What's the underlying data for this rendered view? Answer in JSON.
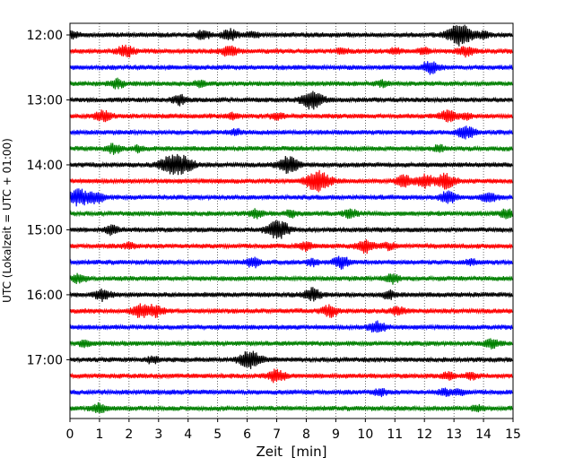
{
  "chart_data": {
    "type": "line",
    "subtype": "helicorder",
    "title": "",
    "xlabel": "Zeit  [min]",
    "ylabel": "UTC (Lokalzeit = UTC + 01:00)",
    "xlim": [
      0,
      15
    ],
    "x_ticks": [
      "0",
      "1",
      "2",
      "3",
      "4",
      "5",
      "6",
      "7",
      "8",
      "9",
      "10",
      "11",
      "12",
      "13",
      "14",
      "15"
    ],
    "y_ticks": [
      "12:00",
      "13:00",
      "14:00",
      "15:00",
      "16:00",
      "17:00"
    ],
    "minutes_per_line": 15,
    "start_time": "12:00",
    "line_count": 24,
    "grid": "vertical dotted lines at each minute",
    "colors": [
      "#000000",
      "#ff0000",
      "#0000ff",
      "#008000"
    ],
    "color_cycle": "black, red, blue, green (repeats every 4 lines)",
    "bursts": [
      [
        [
          0.1,
          0.6
        ],
        [
          4.5,
          0.9
        ],
        [
          5.4,
          1.2
        ],
        [
          6.2,
          0.6
        ],
        [
          13.2,
          2.4
        ],
        [
          14.0,
          0.7
        ]
      ],
      [
        [
          1.9,
          1.3
        ],
        [
          5.4,
          1.2
        ],
        [
          9.2,
          0.6
        ],
        [
          11.0,
          0.6
        ],
        [
          12.0,
          0.6
        ],
        [
          13.4,
          1.0
        ]
      ],
      [
        [
          12.2,
          1.3
        ]
      ],
      [
        [
          1.6,
          0.9
        ],
        [
          4.4,
          0.6
        ],
        [
          10.6,
          0.6
        ]
      ],
      [
        [
          3.7,
          1.0
        ],
        [
          8.2,
          2.0
        ]
      ],
      [
        [
          1.1,
          1.2
        ],
        [
          5.5,
          0.6
        ],
        [
          7.0,
          0.7
        ],
        [
          12.8,
          1.2
        ],
        [
          13.4,
          0.6
        ]
      ],
      [
        [
          5.6,
          0.6
        ],
        [
          13.4,
          1.3
        ]
      ],
      [
        [
          1.5,
          1.0
        ],
        [
          2.3,
          0.6
        ],
        [
          12.5,
          0.6
        ]
      ],
      [
        [
          3.3,
          1.6
        ],
        [
          3.8,
          2.0
        ],
        [
          7.4,
          1.8
        ]
      ],
      [
        [
          8.4,
          2.3
        ],
        [
          11.3,
          1.2
        ],
        [
          12.0,
          1.3
        ],
        [
          12.7,
          1.6
        ]
      ],
      [
        [
          0.3,
          1.8
        ],
        [
          0.9,
          1.2
        ],
        [
          12.8,
          1.3
        ],
        [
          14.2,
          1.0
        ]
      ],
      [
        [
          6.3,
          0.8
        ],
        [
          7.5,
          0.7
        ],
        [
          9.5,
          0.9
        ],
        [
          14.8,
          1.0
        ]
      ],
      [
        [
          1.4,
          0.9
        ],
        [
          6.9,
          1.4
        ],
        [
          7.2,
          1.2
        ]
      ],
      [
        [
          2.0,
          0.6
        ],
        [
          8.0,
          0.9
        ],
        [
          10.0,
          1.4
        ],
        [
          10.8,
          0.7
        ]
      ],
      [
        [
          6.2,
          1.0
        ],
        [
          8.2,
          0.7
        ],
        [
          9.2,
          1.3
        ],
        [
          13.6,
          0.5
        ]
      ],
      [
        [
          0.3,
          0.9
        ],
        [
          10.9,
          1.0
        ]
      ],
      [
        [
          1.1,
          1.2
        ],
        [
          8.2,
          1.3
        ],
        [
          10.8,
          0.8
        ]
      ],
      [
        [
          2.4,
          1.4
        ],
        [
          2.9,
          1.2
        ],
        [
          8.8,
          1.2
        ],
        [
          11.1,
          0.9
        ]
      ],
      [
        [
          10.4,
          1.3
        ]
      ],
      [
        [
          0.5,
          0.7
        ],
        [
          14.3,
          1.0
        ]
      ],
      [
        [
          2.8,
          0.7
        ],
        [
          6.1,
          2.0
        ]
      ],
      [
        [
          7.0,
          1.3
        ],
        [
          12.8,
          0.7
        ],
        [
          13.6,
          0.7
        ]
      ],
      [
        [
          10.5,
          0.7
        ],
        [
          12.7,
          0.7
        ],
        [
          13.2,
          0.7
        ]
      ],
      [
        [
          1.0,
          1.0
        ],
        [
          13.8,
          0.6
        ]
      ]
    ]
  }
}
